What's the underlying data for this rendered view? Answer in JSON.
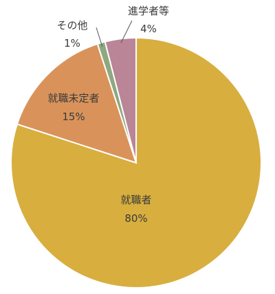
{
  "chart_data": {
    "type": "pie",
    "title": "",
    "start_angle_deg": 0,
    "direction": "clockwise",
    "slices": [
      {
        "name": "就職者",
        "value": 80,
        "value_label": "80%",
        "color": "#D8AE3F"
      },
      {
        "name": "就職未定者",
        "value": 15,
        "value_label": "15%",
        "color": "#D9935A"
      },
      {
        "name": "その他",
        "value": 1,
        "value_label": "1%",
        "color": "#8FA87F"
      },
      {
        "name": "進学者等",
        "value": 4,
        "value_label": "4%",
        "color": "#B98597"
      }
    ]
  }
}
